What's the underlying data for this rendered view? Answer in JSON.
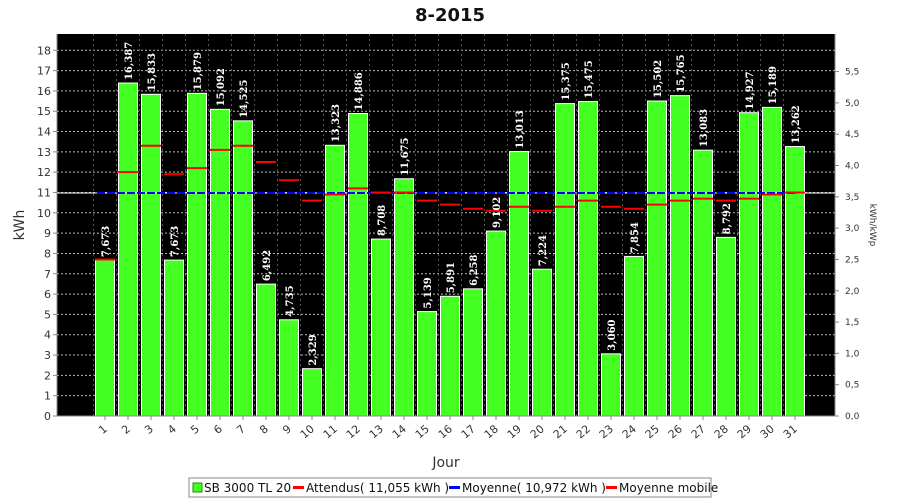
{
  "chart_data": {
    "type": "bar",
    "title": "8-2015",
    "xlabel": "Jour",
    "ylabel": "kWh",
    "y2label": "kWh/kWp",
    "ylim": [
      0,
      18.8
    ],
    "y_ticks": [
      "0",
      "1",
      "2",
      "3",
      "4",
      "5",
      "6",
      "7",
      "8",
      "9",
      "10",
      "11",
      "12",
      "13",
      "14",
      "15",
      "16",
      "17",
      "18"
    ],
    "y2lim": [
      0,
      6.1
    ],
    "y2_ticks": [
      "0,0",
      "0,5",
      "1,0",
      "1,5",
      "2,0",
      "2,5",
      "3,0",
      "3,5",
      "4,0",
      "4,5",
      "5,0",
      "5,5"
    ],
    "grid": true,
    "legend_position": "bottom",
    "categories": [
      "1",
      "2",
      "3",
      "4",
      "5",
      "6",
      "7",
      "8",
      "9",
      "10",
      "11",
      "12",
      "13",
      "14",
      "15",
      "16",
      "17",
      "18",
      "19",
      "20",
      "21",
      "22",
      "23",
      "24",
      "25",
      "26",
      "27",
      "28",
      "29",
      "30",
      "31"
    ],
    "series": [
      {
        "name": "SB 3000 TL 20",
        "color": "#44ff22",
        "values": [
          7.673,
          16.387,
          15.833,
          7.673,
          15.879,
          15.092,
          14.525,
          6.492,
          4.735,
          2.329,
          13.323,
          14.886,
          8.708,
          11.675,
          5.139,
          5.891,
          6.258,
          9.102,
          13.013,
          7.224,
          15.375,
          15.475,
          3.06,
          7.854,
          15.502,
          15.765,
          13.083,
          8.792,
          14.927,
          15.189,
          13.262
        ],
        "labels": [
          "7,673",
          "16,387",
          "15,833",
          "7,673",
          "15,879",
          "15,092",
          "14,525",
          "6,492",
          "4,735",
          "2,329",
          "13,323",
          "14,886",
          "8,708",
          "11,675",
          "5,139",
          "5,891",
          "6,258",
          "9,102",
          "13,013",
          "7,224",
          "15,375",
          "15,475",
          "3,060",
          "7,854",
          "15,502",
          "15,765",
          "13,083",
          "8,792",
          "14,927",
          "15,189",
          "13,262"
        ]
      },
      {
        "name": "Attendus",
        "legend": "Attendus( 11,055 kWh )",
        "color": "#ff0000",
        "values": [
          7.7,
          12.0,
          13.3,
          11.9,
          12.2,
          13.1,
          13.3,
          12.5,
          11.6,
          10.6,
          10.9,
          11.2,
          11.0,
          11.0,
          10.6,
          10.4,
          10.2,
          10.1,
          10.3,
          10.1,
          10.3,
          10.6,
          10.3,
          10.2,
          10.4,
          10.6,
          10.7,
          10.6,
          10.7,
          10.9,
          11.0
        ]
      },
      {
        "name": "Moyenne",
        "legend": "Moyenne( 10,972 kWh )",
        "color": "#0000ff",
        "value": 10.972
      },
      {
        "name": "Moyenne mobile",
        "legend": "Moyenne mobile",
        "color": "#ff0000"
      }
    ]
  }
}
